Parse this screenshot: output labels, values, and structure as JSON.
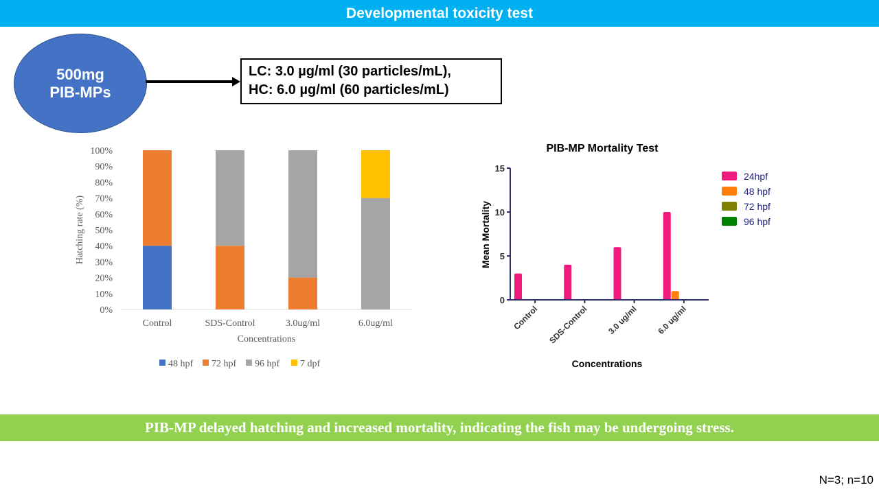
{
  "header": {
    "title": "Developmental toxicity test"
  },
  "source": {
    "line1": "500mg",
    "line2": "PIB-MPs"
  },
  "concentrations_box": {
    "line1": "LC: 3.0 µg/ml (30 particles/mL),",
    "line2": "HC: 6.0 µg/ml (60 particles/mL)"
  },
  "conclusion": "PIB-MP delayed hatching and increased mortality, indicating the fish may be undergoing stress.",
  "sample_note": "N=3; n=10",
  "chart_data": [
    {
      "type": "bar",
      "stacked": true,
      "title": "",
      "xlabel": "Concentrations",
      "ylabel": "Hatching  rate (%)",
      "categories": [
        "Control",
        "SDS-Control",
        "3.0ug/ml",
        "6.0ug/ml"
      ],
      "yticks": [
        "0%",
        "10%",
        "20%",
        "30%",
        "40%",
        "50%",
        "60%",
        "70%",
        "80%",
        "90%",
        "100%"
      ],
      "ylim": [
        0,
        100
      ],
      "legend_position": "bottom",
      "series": [
        {
          "name": "48 hpf",
          "color": "#4472c4",
          "values": [
            40,
            0,
            0,
            0
          ]
        },
        {
          "name": "72 hpf",
          "color": "#ed7d31",
          "values": [
            60,
            40,
            20,
            0
          ]
        },
        {
          "name": "96 hpf",
          "color": "#a5a5a5",
          "values": [
            0,
            60,
            80,
            70
          ]
        },
        {
          "name": "7 dpf",
          "color": "#ffc000",
          "values": [
            0,
            0,
            0,
            30
          ]
        }
      ]
    },
    {
      "type": "bar",
      "stacked": false,
      "title": "PIB-MP Mortality Test",
      "xlabel": "Concentrations",
      "ylabel": "Mean Mortality",
      "categories": [
        "Control",
        "SDS-Control",
        "3.0 ug/ml",
        "6.0 ug/ml"
      ],
      "yticks": [
        "0",
        "5",
        "10",
        "15"
      ],
      "ylim": [
        0,
        15
      ],
      "legend_position": "right",
      "series": [
        {
          "name": "24hpf",
          "color": "#f0197d",
          "values": [
            3,
            4,
            6,
            10
          ]
        },
        {
          "name": "48 hpf",
          "color": "#ff7f0e",
          "values": [
            0,
            0,
            0,
            1
          ]
        },
        {
          "name": "72 hpf",
          "color": "#7f7f00",
          "values": [
            0,
            0,
            0,
            0
          ]
        },
        {
          "name": "96 hpf",
          "color": "#008000",
          "values": [
            0,
            0,
            0,
            0
          ]
        }
      ]
    }
  ]
}
